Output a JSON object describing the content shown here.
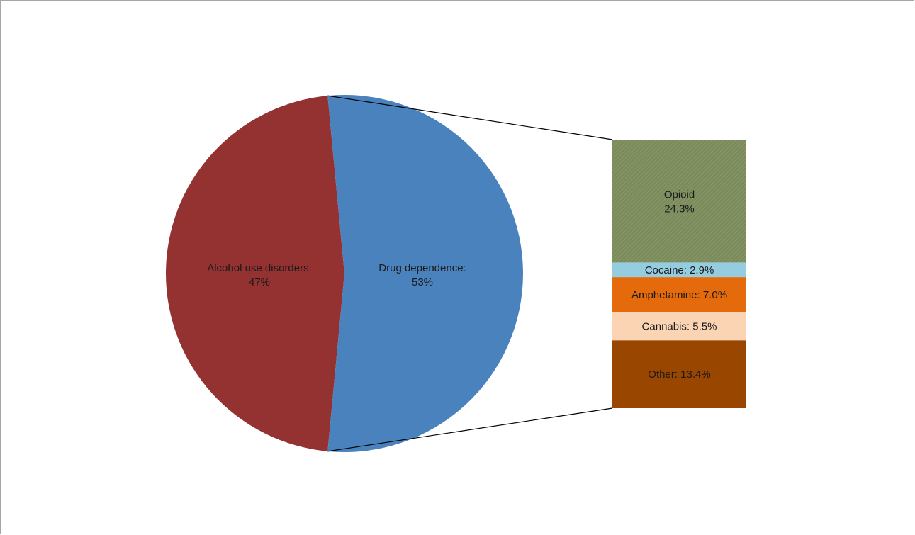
{
  "chart_data": {
    "type": "pie",
    "title": "",
    "pie": {
      "slices": [
        {
          "label": "Alcohol use disorders:",
          "value": 47,
          "value_label": "47%",
          "color": "#943131"
        },
        {
          "label": "Drug dependence:",
          "value": 53,
          "value_label": "53%",
          "color": "#4a82bd"
        }
      ]
    },
    "breakdown": {
      "of": "Drug dependence:",
      "type": "stacked-bar",
      "segments": [
        {
          "label": "Opioid",
          "value": 24.3,
          "value_label": "24.3%",
          "color": "#7b8b5c",
          "pattern": "hatch"
        },
        {
          "label": "Cocaine:",
          "value": 2.9,
          "value_label": "2.9%",
          "color": "#95cde0"
        },
        {
          "label": "Amphetamine:",
          "value": 7.0,
          "value_label": "7.0%",
          "color": "#e46a0c"
        },
        {
          "label": "Cannabis:",
          "value": 5.5,
          "value_label": "5.5%",
          "color": "#fbd4b4"
        },
        {
          "label": "Other:",
          "value": 13.4,
          "value_label": "13.4%",
          "color": "#994600"
        }
      ]
    },
    "legend": "none",
    "grid": false
  }
}
